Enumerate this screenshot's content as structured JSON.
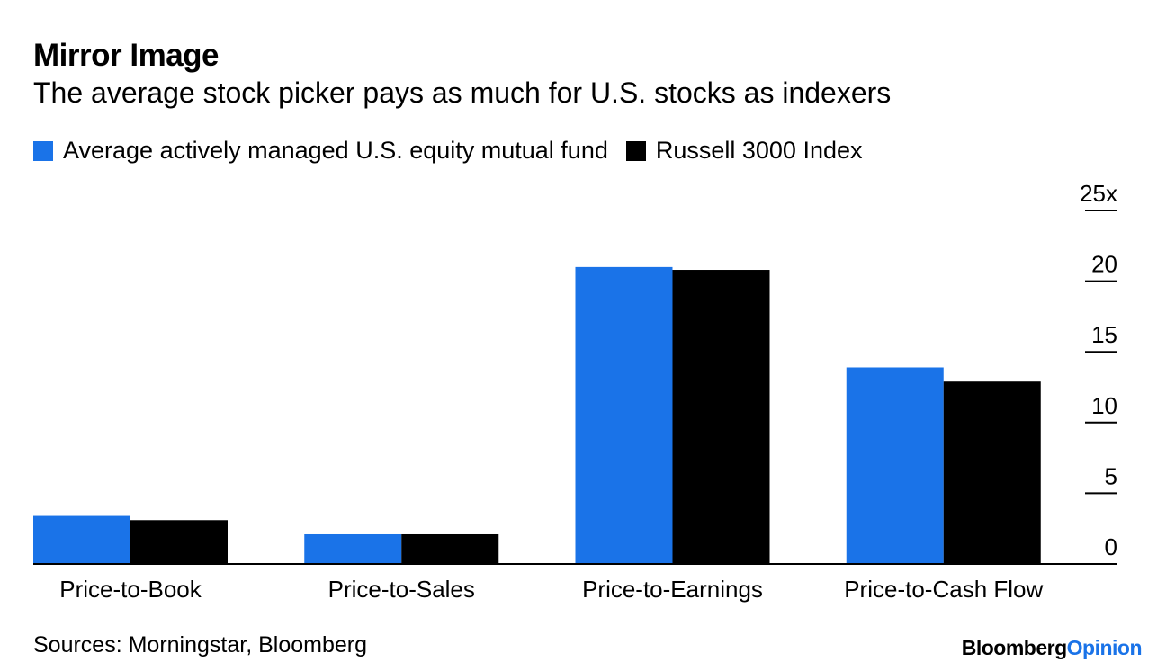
{
  "chart_data": {
    "type": "bar",
    "title": "Mirror Image",
    "subtitle": "The average stock picker pays as much for U.S. stocks as indexers",
    "categories": [
      "Price-to-Book",
      "Price-to-Sales",
      "Price-to-Earnings",
      "Price-to-Cash Flow"
    ],
    "series": [
      {
        "name": "Average actively managed U.S. equity mutual fund",
        "color": "#1a73e8",
        "values": [
          3.4,
          2.1,
          21.0,
          13.9
        ]
      },
      {
        "name": "Russell 3000 Index",
        "color": "#000000",
        "values": [
          3.1,
          2.1,
          20.8,
          12.9
        ]
      }
    ],
    "ylim": [
      0,
      25
    ],
    "yticks": [
      0,
      5,
      10,
      15,
      20,
      25
    ],
    "ytick_labels": [
      "0",
      "5",
      "10",
      "15",
      "20",
      "25x"
    ],
    "y_axis_position": "right",
    "xlabel": "",
    "ylabel": ""
  },
  "source": "Sources: Morningstar, Bloomberg",
  "brand": {
    "part1": "Bloomberg",
    "part2": "Opinion"
  }
}
